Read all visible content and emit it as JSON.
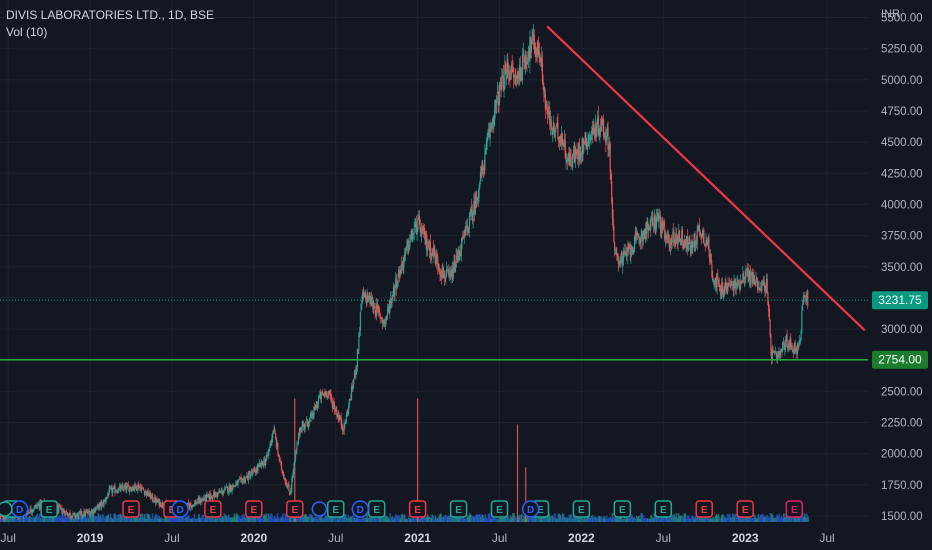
{
  "header": {
    "symbol_title": "DIVIS LABORATORIES LTD., 1D, BSE",
    "volume_label": "Vol (10)"
  },
  "colors": {
    "background": "#131722",
    "grid": "#1e222d",
    "up_candle": "#26a69a",
    "down_candle": "#ef5350",
    "trendline": "#f23645",
    "support_line": "#22ab3c",
    "price_badge": "#089981",
    "support_badge": "#1b7d2b",
    "axis_text": "#b2b5be",
    "volume_blue": "#2962ff",
    "earnings_green": "#22ab94",
    "earnings_red": "#f23645",
    "earnings_pink": "#e91e63"
  },
  "chart_data": {
    "type": "candlestick",
    "title": "DIVIS LABORATORIES LTD., 1D, BSE",
    "currency": "INR",
    "ylim": [
      1420,
      5560
    ],
    "yticks": [
      "5500.00",
      "5250.00",
      "5000.00",
      "4750.00",
      "4500.00",
      "4250.00",
      "4000.00",
      "3750.00",
      "3500.00",
      "3250.00",
      "3000.00",
      "2750.00",
      "2500.00",
      "2250.00",
      "2000.00",
      "1750.00",
      "1500.00"
    ],
    "ytick_values": [
      5500,
      5250,
      5000,
      4750,
      4500,
      4250,
      4000,
      3750,
      3500,
      3250,
      3000,
      2750,
      2500,
      2250,
      2000,
      1750,
      1500
    ],
    "xlim": [
      2018.45,
      2023.75
    ],
    "xticks": [
      {
        "label": "Jul",
        "t": 2018.5,
        "bold": false
      },
      {
        "label": "2019",
        "t": 2019.0,
        "bold": true
      },
      {
        "label": "Jul",
        "t": 2019.5,
        "bold": false
      },
      {
        "label": "2020",
        "t": 2020.0,
        "bold": true
      },
      {
        "label": "Jul",
        "t": 2020.5,
        "bold": false
      },
      {
        "label": "2021",
        "t": 2021.0,
        "bold": true
      },
      {
        "label": "Jul",
        "t": 2021.5,
        "bold": false
      },
      {
        "label": "2022",
        "t": 2022.0,
        "bold": true
      },
      {
        "label": "Jul",
        "t": 2022.5,
        "bold": false
      },
      {
        "label": "2023",
        "t": 2023.0,
        "bold": true
      },
      {
        "label": "Jul",
        "t": 2023.5,
        "bold": false
      }
    ],
    "price_path": [
      [
        2018.45,
        1490
      ],
      [
        2018.6,
        1520
      ],
      [
        2018.7,
        1600
      ],
      [
        2018.8,
        1560
      ],
      [
        2018.9,
        1500
      ],
      [
        2019.0,
        1530
      ],
      [
        2019.08,
        1600
      ],
      [
        2019.12,
        1700
      ],
      [
        2019.2,
        1720
      ],
      [
        2019.3,
        1740
      ],
      [
        2019.4,
        1620
      ],
      [
        2019.5,
        1560
      ],
      [
        2019.6,
        1580
      ],
      [
        2019.7,
        1640
      ],
      [
        2019.8,
        1690
      ],
      [
        2019.9,
        1760
      ],
      [
        2020.0,
        1850
      ],
      [
        2020.08,
        1960
      ],
      [
        2020.12,
        2200
      ],
      [
        2020.16,
        1920
      ],
      [
        2020.22,
        1680
      ],
      [
        2020.28,
        2200
      ],
      [
        2020.35,
        2280
      ],
      [
        2020.4,
        2450
      ],
      [
        2020.45,
        2500
      ],
      [
        2020.5,
        2350
      ],
      [
        2020.55,
        2200
      ],
      [
        2020.6,
        2520
      ],
      [
        2020.63,
        2750
      ],
      [
        2020.66,
        3250
      ],
      [
        2020.7,
        3250
      ],
      [
        2020.75,
        3150
      ],
      [
        2020.8,
        3050
      ],
      [
        2020.85,
        3300
      ],
      [
        2020.9,
        3500
      ],
      [
        2020.95,
        3700
      ],
      [
        2021.0,
        3850
      ],
      [
        2021.05,
        3700
      ],
      [
        2021.1,
        3600
      ],
      [
        2021.15,
        3450
      ],
      [
        2021.2,
        3400
      ],
      [
        2021.25,
        3600
      ],
      [
        2021.3,
        3800
      ],
      [
        2021.35,
        4000
      ],
      [
        2021.4,
        4300
      ],
      [
        2021.45,
        4650
      ],
      [
        2021.5,
        4900
      ],
      [
        2021.55,
        5100
      ],
      [
        2021.6,
        5000
      ],
      [
        2021.65,
        5150
      ],
      [
        2021.7,
        5300
      ],
      [
        2021.75,
        5200
      ],
      [
        2021.78,
        4800
      ],
      [
        2021.82,
        4600
      ],
      [
        2021.88,
        4550
      ],
      [
        2021.92,
        4350
      ],
      [
        2021.97,
        4400
      ],
      [
        2022.02,
        4500
      ],
      [
        2022.08,
        4600
      ],
      [
        2022.12,
        4650
      ],
      [
        2022.17,
        4500
      ],
      [
        2022.2,
        3600
      ],
      [
        2022.25,
        3550
      ],
      [
        2022.3,
        3650
      ],
      [
        2022.4,
        3800
      ],
      [
        2022.47,
        3900
      ],
      [
        2022.52,
        3700
      ],
      [
        2022.6,
        3750
      ],
      [
        2022.67,
        3650
      ],
      [
        2022.72,
        3800
      ],
      [
        2022.77,
        3700
      ],
      [
        2022.8,
        3450
      ],
      [
        2022.85,
        3300
      ],
      [
        2022.9,
        3350
      ],
      [
        2022.95,
        3350
      ],
      [
        2023.0,
        3450
      ],
      [
        2023.05,
        3400
      ],
      [
        2023.09,
        3350
      ],
      [
        2023.13,
        3350
      ],
      [
        2023.16,
        2800
      ],
      [
        2023.2,
        2760
      ],
      [
        2023.25,
        2900
      ],
      [
        2023.3,
        2850
      ],
      [
        2023.33,
        2850
      ],
      [
        2023.36,
        3300
      ],
      [
        2023.385,
        3231.75
      ]
    ],
    "volume_spikes": [
      {
        "t": 2020.25,
        "v": 0.95
      },
      {
        "t": 2021.0,
        "v": 0.95
      },
      {
        "t": 2021.61,
        "v": 0.75
      },
      {
        "t": 2021.66,
        "v": 0.42
      }
    ],
    "trendline": {
      "from": [
        2021.79,
        5430
      ],
      "to": [
        2023.73,
        2990
      ]
    },
    "support_line": {
      "price": 2754.0,
      "label": "2754.00"
    },
    "last_price": {
      "price": 3231.75,
      "label": "3231.75"
    },
    "earnings_markers": [
      {
        "t": 2018.52,
        "label": "E",
        "kind": "green"
      },
      {
        "t": 2018.75,
        "label": "E",
        "kind": "green"
      },
      {
        "t": 2019.25,
        "label": "E",
        "kind": "red"
      },
      {
        "t": 2019.5,
        "label": "E",
        "kind": "red"
      },
      {
        "t": 2019.75,
        "label": "E",
        "kind": "red"
      },
      {
        "t": 2020.0,
        "label": "E",
        "kind": "red"
      },
      {
        "t": 2020.25,
        "label": "E",
        "kind": "red"
      },
      {
        "t": 2020.5,
        "label": "E",
        "kind": "green"
      },
      {
        "t": 2020.75,
        "label": "E",
        "kind": "green"
      },
      {
        "t": 2021.0,
        "label": "E",
        "kind": "red"
      },
      {
        "t": 2021.25,
        "label": "E",
        "kind": "green"
      },
      {
        "t": 2021.5,
        "label": "E",
        "kind": "green"
      },
      {
        "t": 2021.75,
        "label": "E",
        "kind": "green"
      },
      {
        "t": 2022.0,
        "label": "E",
        "kind": "green"
      },
      {
        "t": 2022.25,
        "label": "E",
        "kind": "green"
      },
      {
        "t": 2022.5,
        "label": "E",
        "kind": "green"
      },
      {
        "t": 2022.75,
        "label": "E",
        "kind": "red"
      },
      {
        "t": 2023.0,
        "label": "E",
        "kind": "red"
      },
      {
        "t": 2023.3,
        "label": "E",
        "kind": "pink"
      }
    ],
    "dividend_markers": [
      {
        "t": 2018.57,
        "label": "D",
        "kind": "blue"
      },
      {
        "t": 2019.55,
        "label": "D",
        "kind": "blue"
      },
      {
        "t": 2020.65,
        "label": "D",
        "kind": "blue"
      },
      {
        "t": 2021.69,
        "label": "D",
        "kind": "blue"
      }
    ],
    "split_markers": [
      {
        "t": 2018.48,
        "label": "",
        "kind": "green"
      },
      {
        "t": 2020.4,
        "label": "",
        "kind": "blue"
      }
    ]
  },
  "axis": {
    "currency_label": "INR"
  }
}
